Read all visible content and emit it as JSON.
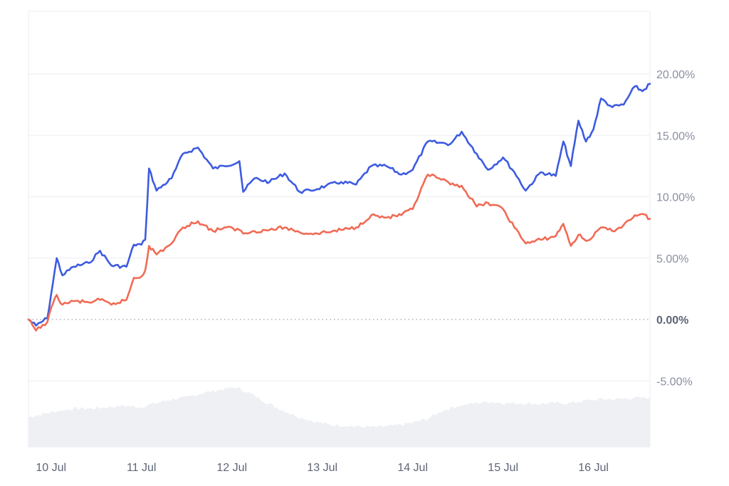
{
  "chart_data": {
    "type": "line",
    "title": "",
    "xlabel": "",
    "ylabel": "",
    "x_range": [
      "9 Jul 18:00",
      "16 Jul 15:00"
    ],
    "ylim": [
      -10,
      25
    ],
    "y_ticks": [
      {
        "value": 20,
        "label": "20.00%"
      },
      {
        "value": 15,
        "label": "15.00%"
      },
      {
        "value": 10,
        "label": "10.00%"
      },
      {
        "value": 5,
        "label": "5.00%"
      },
      {
        "value": 0,
        "label": "0.00%"
      },
      {
        "value": -5,
        "label": "-5.00%"
      }
    ],
    "x_ticks": [
      "10 Jul",
      "11 Jul",
      "12 Jul",
      "13 Jul",
      "14 Jul",
      "15 Jul",
      "16 Jul"
    ],
    "grid": true,
    "zero_line": "dotted",
    "legend": "none",
    "series": [
      {
        "color": "#3d5be0",
        "points": [
          [
            "9 Jul 18:00",
            0.0
          ],
          [
            "9 Jul 20:00",
            -0.5
          ],
          [
            "9 Jul 23:00",
            0.1
          ],
          [
            "10 Jul 00:30",
            3.0
          ],
          [
            "10 Jul 01:30",
            5.0
          ],
          [
            "10 Jul 03:00",
            3.6
          ],
          [
            "10 Jul 06:00",
            4.3
          ],
          [
            "10 Jul 10:00",
            4.6
          ],
          [
            "10 Jul 13:00",
            5.6
          ],
          [
            "10 Jul 16:00",
            4.4
          ],
          [
            "10 Jul 20:00",
            4.3
          ],
          [
            "10 Jul 22:00",
            6.1
          ],
          [
            "11 Jul 00:00",
            6.1
          ],
          [
            "11 Jul 01:00",
            6.5
          ],
          [
            "11 Jul 02:00",
            12.3
          ],
          [
            "11 Jul 04:00",
            10.5
          ],
          [
            "11 Jul 08:00",
            11.5
          ],
          [
            "11 Jul 11:00",
            13.5
          ],
          [
            "11 Jul 15:00",
            14.0
          ],
          [
            "11 Jul 19:00",
            12.3
          ],
          [
            "11 Jul 22:00",
            12.5
          ],
          [
            "12 Jul 02:00",
            12.9
          ],
          [
            "12 Jul 03:00",
            10.4
          ],
          [
            "12 Jul 06:00",
            11.5
          ],
          [
            "12 Jul 10:00",
            11.2
          ],
          [
            "12 Jul 14:00",
            11.9
          ],
          [
            "12 Jul 18:00",
            10.4
          ],
          [
            "12 Jul 21:00",
            10.5
          ],
          [
            "13 Jul 01:00",
            10.9
          ],
          [
            "13 Jul 05:00",
            11.2
          ],
          [
            "13 Jul 09:00",
            11.0
          ],
          [
            "13 Jul 13:00",
            12.5
          ],
          [
            "13 Jul 17:00",
            12.5
          ],
          [
            "13 Jul 21:00",
            11.8
          ],
          [
            "14 Jul 00:00",
            12.2
          ],
          [
            "14 Jul 04:00",
            14.5
          ],
          [
            "14 Jul 07:00",
            14.4
          ],
          [
            "14 Jul 10:00",
            14.3
          ],
          [
            "14 Jul 13:00",
            15.3
          ],
          [
            "14 Jul 17:00",
            13.5
          ],
          [
            "14 Jul 20:00",
            12.2
          ],
          [
            "15 Jul 00:00",
            13.2
          ],
          [
            "15 Jul 03:00",
            12.0
          ],
          [
            "15 Jul 06:00",
            10.5
          ],
          [
            "15 Jul 10:00",
            12.0
          ],
          [
            "15 Jul 14:00",
            11.7
          ],
          [
            "15 Jul 16:00",
            14.5
          ],
          [
            "15 Jul 18:00",
            12.5
          ],
          [
            "15 Jul 20:00",
            16.2
          ],
          [
            "15 Jul 22:00",
            14.5
          ],
          [
            "16 Jul 00:00",
            15.5
          ],
          [
            "16 Jul 02:00",
            18.0
          ],
          [
            "16 Jul 05:00",
            17.3
          ],
          [
            "16 Jul 08:00",
            17.5
          ],
          [
            "16 Jul 11:00",
            19.0
          ],
          [
            "16 Jul 13:00",
            18.6
          ],
          [
            "16 Jul 15:00",
            19.2
          ]
        ]
      },
      {
        "color": "#f06b55",
        "points": [
          [
            "9 Jul 18:00",
            0.0
          ],
          [
            "9 Jul 20:00",
            -0.9
          ],
          [
            "9 Jul 23:00",
            -0.2
          ],
          [
            "10 Jul 00:30",
            1.3
          ],
          [
            "10 Jul 01:30",
            2.0
          ],
          [
            "10 Jul 03:00",
            1.2
          ],
          [
            "10 Jul 06:00",
            1.5
          ],
          [
            "10 Jul 10:00",
            1.4
          ],
          [
            "10 Jul 13:00",
            1.6
          ],
          [
            "10 Jul 16:00",
            1.2
          ],
          [
            "10 Jul 20:00",
            1.6
          ],
          [
            "10 Jul 22:00",
            3.4
          ],
          [
            "11 Jul 00:00",
            3.5
          ],
          [
            "11 Jul 01:00",
            4.0
          ],
          [
            "11 Jul 02:00",
            6.0
          ],
          [
            "11 Jul 04:00",
            5.3
          ],
          [
            "11 Jul 08:00",
            6.2
          ],
          [
            "11 Jul 11:00",
            7.5
          ],
          [
            "11 Jul 15:00",
            8.0
          ],
          [
            "11 Jul 19:00",
            7.2
          ],
          [
            "11 Jul 22:00",
            7.5
          ],
          [
            "12 Jul 02:00",
            7.3
          ],
          [
            "12 Jul 03:00",
            7.0
          ],
          [
            "12 Jul 06:00",
            7.2
          ],
          [
            "12 Jul 10:00",
            7.3
          ],
          [
            "12 Jul 14:00",
            7.5
          ],
          [
            "12 Jul 18:00",
            7.1
          ],
          [
            "12 Jul 21:00",
            7.0
          ],
          [
            "13 Jul 01:00",
            7.1
          ],
          [
            "13 Jul 05:00",
            7.3
          ],
          [
            "13 Jul 09:00",
            7.5
          ],
          [
            "13 Jul 13:00",
            8.5
          ],
          [
            "13 Jul 17:00",
            8.3
          ],
          [
            "13 Jul 21:00",
            8.5
          ],
          [
            "14 Jul 00:00",
            9.0
          ],
          [
            "14 Jul 04:00",
            11.8
          ],
          [
            "14 Jul 07:00",
            11.5
          ],
          [
            "14 Jul 10:00",
            11.0
          ],
          [
            "14 Jul 13:00",
            10.9
          ],
          [
            "14 Jul 17:00",
            9.2
          ],
          [
            "14 Jul 20:00",
            9.5
          ],
          [
            "15 Jul 00:00",
            9.0
          ],
          [
            "15 Jul 03:00",
            7.5
          ],
          [
            "15 Jul 06:00",
            6.2
          ],
          [
            "15 Jul 10:00",
            6.5
          ],
          [
            "15 Jul 14:00",
            6.8
          ],
          [
            "15 Jul 16:00",
            7.8
          ],
          [
            "15 Jul 18:00",
            6.0
          ],
          [
            "15 Jul 20:00",
            6.9
          ],
          [
            "15 Jul 22:00",
            6.4
          ],
          [
            "16 Jul 00:00",
            6.8
          ],
          [
            "16 Jul 02:00",
            7.5
          ],
          [
            "16 Jul 05:00",
            7.2
          ],
          [
            "16 Jul 08:00",
            7.7
          ],
          [
            "16 Jul 11:00",
            8.5
          ],
          [
            "16 Jul 13:00",
            8.6
          ],
          [
            "16 Jul 15:00",
            8.2
          ]
        ]
      }
    ],
    "volume": {
      "color": "#eef0f4",
      "values": [
        0.45,
        0.5,
        0.55,
        0.58,
        0.58,
        0.6,
        0.62,
        0.6,
        0.66,
        0.72,
        0.75,
        0.82,
        0.86,
        0.9,
        0.8,
        0.66,
        0.55,
        0.45,
        0.38,
        0.33,
        0.32,
        0.3,
        0.3,
        0.32,
        0.36,
        0.42,
        0.55,
        0.62,
        0.66,
        0.68,
        0.66,
        0.66,
        0.65,
        0.66,
        0.66,
        0.7,
        0.72,
        0.72,
        0.74,
        0.74
      ]
    }
  }
}
